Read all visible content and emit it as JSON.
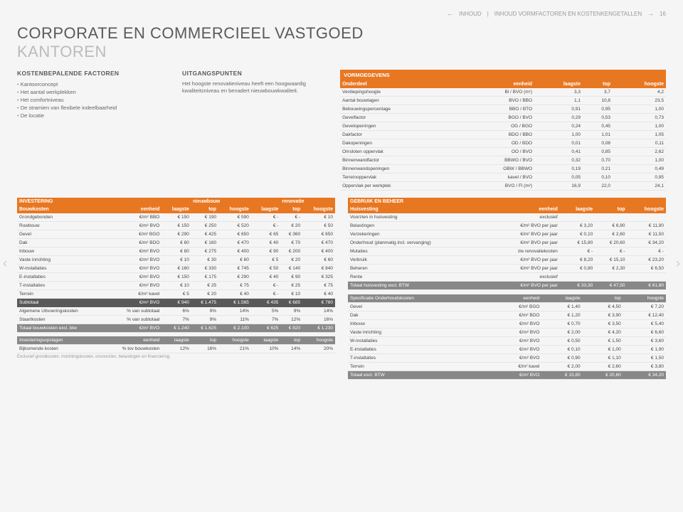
{
  "topbar": {
    "back": "INHOUD",
    "fwd": "INHOUD VORMFACTOREN EN KOSTENKENGETALLEN",
    "page": "16"
  },
  "title": "CORPORATE EN COMMERCIEEL VASTGOED",
  "subtitle": "KANTOREN",
  "factoren": {
    "title": "KOSTENBEPALENDE FACTOREN",
    "items": [
      "Kantoorconcept",
      "Het aantal werkplekken",
      "Het comfortniveau",
      "De stramien van flexibele indeelbaarheid",
      "De locatie"
    ]
  },
  "uitgang": {
    "title": "UITGANGSPUNTEN",
    "text": "Het hoogste renovatieniveau heeft een hoogwaardig kwaliteitsniveau en benadert nieuwbouwkwaliteit."
  },
  "vorm": {
    "title": "VORMGEGEVENS",
    "head": [
      "Onderdeel",
      "eenheid",
      "laagste",
      "top",
      "hoogste"
    ],
    "rows": [
      [
        "Verdiepingshoogte",
        "Bl / BVO (m¹)",
        "3,3",
        "3,7",
        "4,2"
      ],
      [
        "Aantal bouwlagen",
        "BVO / BBO",
        "1,1",
        "10,8",
        "23,5"
      ],
      [
        "Bebouwingspercentage",
        "BBO / BTO",
        "0,91",
        "0,95",
        "1,00"
      ],
      [
        "Gevelfactor",
        "BGO / BVO",
        "0,29",
        "0,53",
        "0,73"
      ],
      [
        "Gevelopeningen",
        "OG / BGO",
        "0,24",
        "0,45",
        "1,00"
      ],
      [
        "Dakfactor",
        "BDO / BBO",
        "1,00",
        "1,01",
        "1,05"
      ],
      [
        "Dakopeningen",
        "OD / BDO",
        "0,01",
        "0,08",
        "0,11"
      ],
      [
        "Omsloten oppervlak",
        "OO / BVO",
        "0,41",
        "0,85",
        "2,62"
      ],
      [
        "Binnenwandfactor",
        "BBWO / BVO",
        "0,32",
        "0,70",
        "1,00"
      ],
      [
        "Binnenwandopeningen",
        "OBW / BBWO",
        "0,19",
        "0,21",
        "0,49"
      ],
      [
        "Terreinoppervlak",
        "kavel / BVO",
        "0,05",
        "0,10",
        "0,95"
      ],
      [
        "Oppervlak per werkplek",
        "BVO / Fl (m²)",
        "16,9",
        "22,0",
        "24,1"
      ]
    ]
  },
  "invest": {
    "title": "INVESTERING",
    "grp": [
      "nieuwbouw",
      "renovatie"
    ],
    "head": [
      "Bouwkosten",
      "eenheid",
      "laagste",
      "top",
      "hoogste",
      "laagste",
      "top",
      "hoogste"
    ],
    "rows": [
      [
        "Grondgebonden",
        "€/m² BBO",
        "€ 150",
        "€ 190",
        "€ 590",
        "€ -",
        "€ -",
        "€ 10"
      ],
      [
        "Ruwbouw",
        "€/m² BVO",
        "€ 150",
        "€ 250",
        "€ 520",
        "€ -",
        "€ 20",
        "€ 50"
      ],
      [
        "Gevel",
        "€/m² BGO",
        "€ 290",
        "€ 425",
        "€ 650",
        "€ 65",
        "€ 360",
        "€ 650"
      ],
      [
        "Dak",
        "€/m² BDO",
        "€ 60",
        "€ 160",
        "€ 470",
        "€ 40",
        "€ 70",
        "€ 470"
      ],
      [
        "Inbouw",
        "€/m² BVO",
        "€ 80",
        "€ 275",
        "€ 400",
        "€ 90",
        "€ 200",
        "€ 400"
      ],
      [
        "Vaste inrichting",
        "€/m² BVO",
        "€ 10",
        "€ 30",
        "€ 60",
        "€ 5",
        "€ 20",
        "€ 60"
      ],
      [
        "W-installaties",
        "€/m² BVO",
        "€ 160",
        "€ 330",
        "€ 745",
        "€ 50",
        "€ 140",
        "€ 840"
      ],
      [
        "E-installaties",
        "€/m² BVO",
        "€ 150",
        "€ 175",
        "€ 290",
        "€ 40",
        "€ 90",
        "€ 325"
      ],
      [
        "T-installaties",
        "€/m² BVO",
        "€ 10",
        "€ 25",
        "€ 75",
        "€ -",
        "€ 25",
        "€ 75"
      ],
      [
        "Terrein",
        "€/m² kavel",
        "€ 5",
        "€ 20",
        "€ 40",
        "€ -",
        "€ 10",
        "€ 40"
      ]
    ],
    "sub": [
      "Subtotaal",
      "€/m² BVO",
      "€ 940",
      "€ 1.475",
      "€ 1.565",
      "€ 435",
      "€ 685",
      "€ 780"
    ],
    "extra": [
      [
        "Algemene Uitvoeringskosten",
        "% van subtotaal",
        "6%",
        "9%",
        "14%",
        "5%",
        "9%",
        "14%"
      ],
      [
        "Staartkosten",
        "% van subtotaal",
        "7%",
        "9%",
        "11%",
        "7%",
        "12%",
        "16%"
      ]
    ],
    "total": [
      "Totaal bouwkosten excl. btw",
      "€/m² BVO",
      "€ 1.240",
      "€ 1.625",
      "€ 2.100",
      "€ 625",
      "€ 820",
      "€ 1.230"
    ],
    "opslag_head": [
      "Investeringsopslagen",
      "eenheid",
      "laagste",
      "top",
      "hoogste",
      "laagste",
      "top",
      "hoogste"
    ],
    "opslag": [
      "Bijkomende kosten",
      "% tov bouwkosten",
      "12%",
      "16%",
      "21%",
      "10%",
      "14%",
      "20%"
    ],
    "foot": "Exclusief grondkosten, inrichtingskosten, onvoorzien, belastingen en financiering."
  },
  "gebruik": {
    "title": "GEBRUIK EN BEHEER",
    "head": [
      "Huisvesting",
      "eenheid",
      "laagste",
      "top",
      "hoogste"
    ],
    "rows": [
      [
        "Voorzien in huisvesting",
        "exclusief",
        "",
        "",
        ""
      ],
      [
        "Belastingen",
        "€/m² BVO per jaar",
        "€ 3,20",
        "€ 6,90",
        "€ 11,90"
      ],
      [
        "Verzekeringen",
        "€/m² BVO per jaar",
        "€ 0,10",
        "€ 2,60",
        "€ 11,50"
      ],
      [
        "Onderhoud (planmatig incl. vervanging)",
        "€/m² BVO per jaar",
        "€ 15,80",
        "€ 20,60",
        "€ 34,20"
      ],
      [
        "Mutaties",
        "zie renovatiekosten",
        "€ -",
        "€ -",
        "€ -"
      ],
      [
        "Verbruik",
        "€/m² BVO per jaar",
        "€ 8,20",
        "€ 15,10",
        "€ 23,20"
      ],
      [
        "Beheren",
        "€/m² BVO per jaar",
        "€ 0,80",
        "€ 2,30",
        "€ 6,50"
      ],
      [
        "Rente",
        "exclusief",
        "",
        "",
        ""
      ]
    ],
    "total": [
      "Totaal huisvesting excl. BTW",
      "€/m² BVO per jaar",
      "€ 33,30",
      "€ 47,50",
      "€ 61,80"
    ]
  },
  "spec": {
    "head": [
      "Specificatie Onderhoudskosten",
      "eenheid",
      "laagste",
      "top",
      "hoogste"
    ],
    "rows": [
      [
        "Gevel",
        "€/m² BGO",
        "€ 1,40",
        "€ 4,50",
        "€ 7,20"
      ],
      [
        "Dak",
        "€/m² BDO",
        "€ 1,20",
        "€ 3,90",
        "€ 12,40"
      ],
      [
        "Inbouw",
        "€/m² BVO",
        "€ 0,70",
        "€ 3,50",
        "€ 5,40"
      ],
      [
        "Vaste inrichting",
        "€/m² BVO",
        "€ 2,00",
        "€ 4,20",
        "€ 6,60"
      ],
      [
        "W-installaties",
        "€/m² BVO",
        "€ 0,50",
        "€ 1,50",
        "€ 3,60"
      ],
      [
        "E-installaties",
        "€/m² BVO",
        "€ 0,10",
        "€ 1,00",
        "€ 1,90"
      ],
      [
        "T-installaties",
        "€/m² BVO",
        "€ 0,90",
        "€ 1,10",
        "€ 1,50"
      ],
      [
        "Terrein",
        "€/m² kavel",
        "€ 2,00",
        "€ 2,60",
        "€ 3,80"
      ]
    ],
    "total": [
      "Totaal excl. BTW",
      "€/m² BVO",
      "€ 15,80",
      "€ 20,60",
      "€ 34,20"
    ]
  }
}
